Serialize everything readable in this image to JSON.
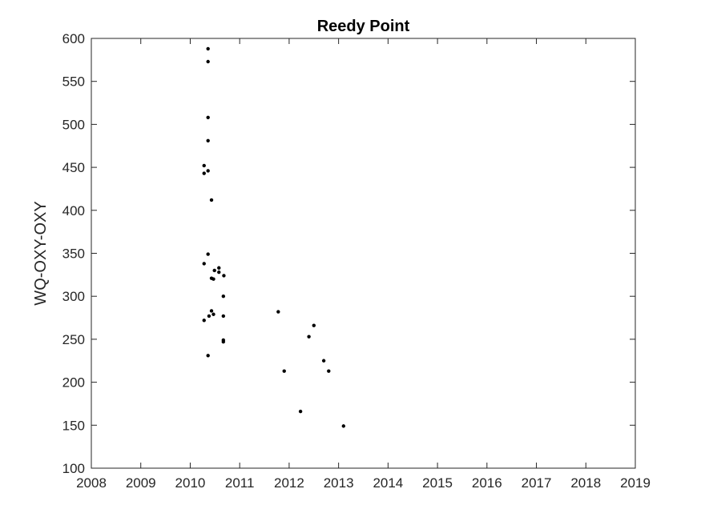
{
  "chart_data": {
    "type": "scatter",
    "title": "Reedy Point",
    "xlabel": "",
    "ylabel": "WQ-OXY-OXY",
    "xlim": [
      2008,
      2019
    ],
    "ylim": [
      100,
      600
    ],
    "xticks": [
      2008,
      2009,
      2010,
      2011,
      2012,
      2013,
      2014,
      2015,
      2016,
      2017,
      2018,
      2019
    ],
    "yticks": [
      100,
      150,
      200,
      250,
      300,
      350,
      400,
      450,
      500,
      550,
      600
    ],
    "grid": false,
    "legend": "none",
    "marker_color": "#000000",
    "series": [
      {
        "points": [
          {
            "x": 2010.36,
            "y": 588
          },
          {
            "x": 2010.36,
            "y": 573
          },
          {
            "x": 2010.36,
            "y": 508
          },
          {
            "x": 2010.36,
            "y": 481
          },
          {
            "x": 2010.28,
            "y": 452
          },
          {
            "x": 2010.28,
            "y": 443
          },
          {
            "x": 2010.36,
            "y": 446
          },
          {
            "x": 2010.43,
            "y": 412
          },
          {
            "x": 2010.36,
            "y": 349
          },
          {
            "x": 2010.28,
            "y": 338
          },
          {
            "x": 2010.49,
            "y": 330
          },
          {
            "x": 2010.58,
            "y": 333
          },
          {
            "x": 2010.58,
            "y": 328
          },
          {
            "x": 2010.68,
            "y": 324
          },
          {
            "x": 2010.43,
            "y": 321
          },
          {
            "x": 2010.47,
            "y": 320
          },
          {
            "x": 2010.67,
            "y": 300
          },
          {
            "x": 2010.43,
            "y": 283
          },
          {
            "x": 2010.47,
            "y": 279
          },
          {
            "x": 2010.38,
            "y": 277
          },
          {
            "x": 2010.67,
            "y": 277
          },
          {
            "x": 2010.28,
            "y": 272
          },
          {
            "x": 2010.67,
            "y": 249
          },
          {
            "x": 2010.67,
            "y": 247
          },
          {
            "x": 2010.36,
            "y": 231
          },
          {
            "x": 2011.78,
            "y": 282
          },
          {
            "x": 2012.5,
            "y": 266
          },
          {
            "x": 2012.4,
            "y": 253
          },
          {
            "x": 2012.7,
            "y": 225
          },
          {
            "x": 2011.9,
            "y": 213
          },
          {
            "x": 2012.8,
            "y": 213
          },
          {
            "x": 2012.23,
            "y": 166
          },
          {
            "x": 2013.1,
            "y": 149
          }
        ]
      }
    ]
  }
}
